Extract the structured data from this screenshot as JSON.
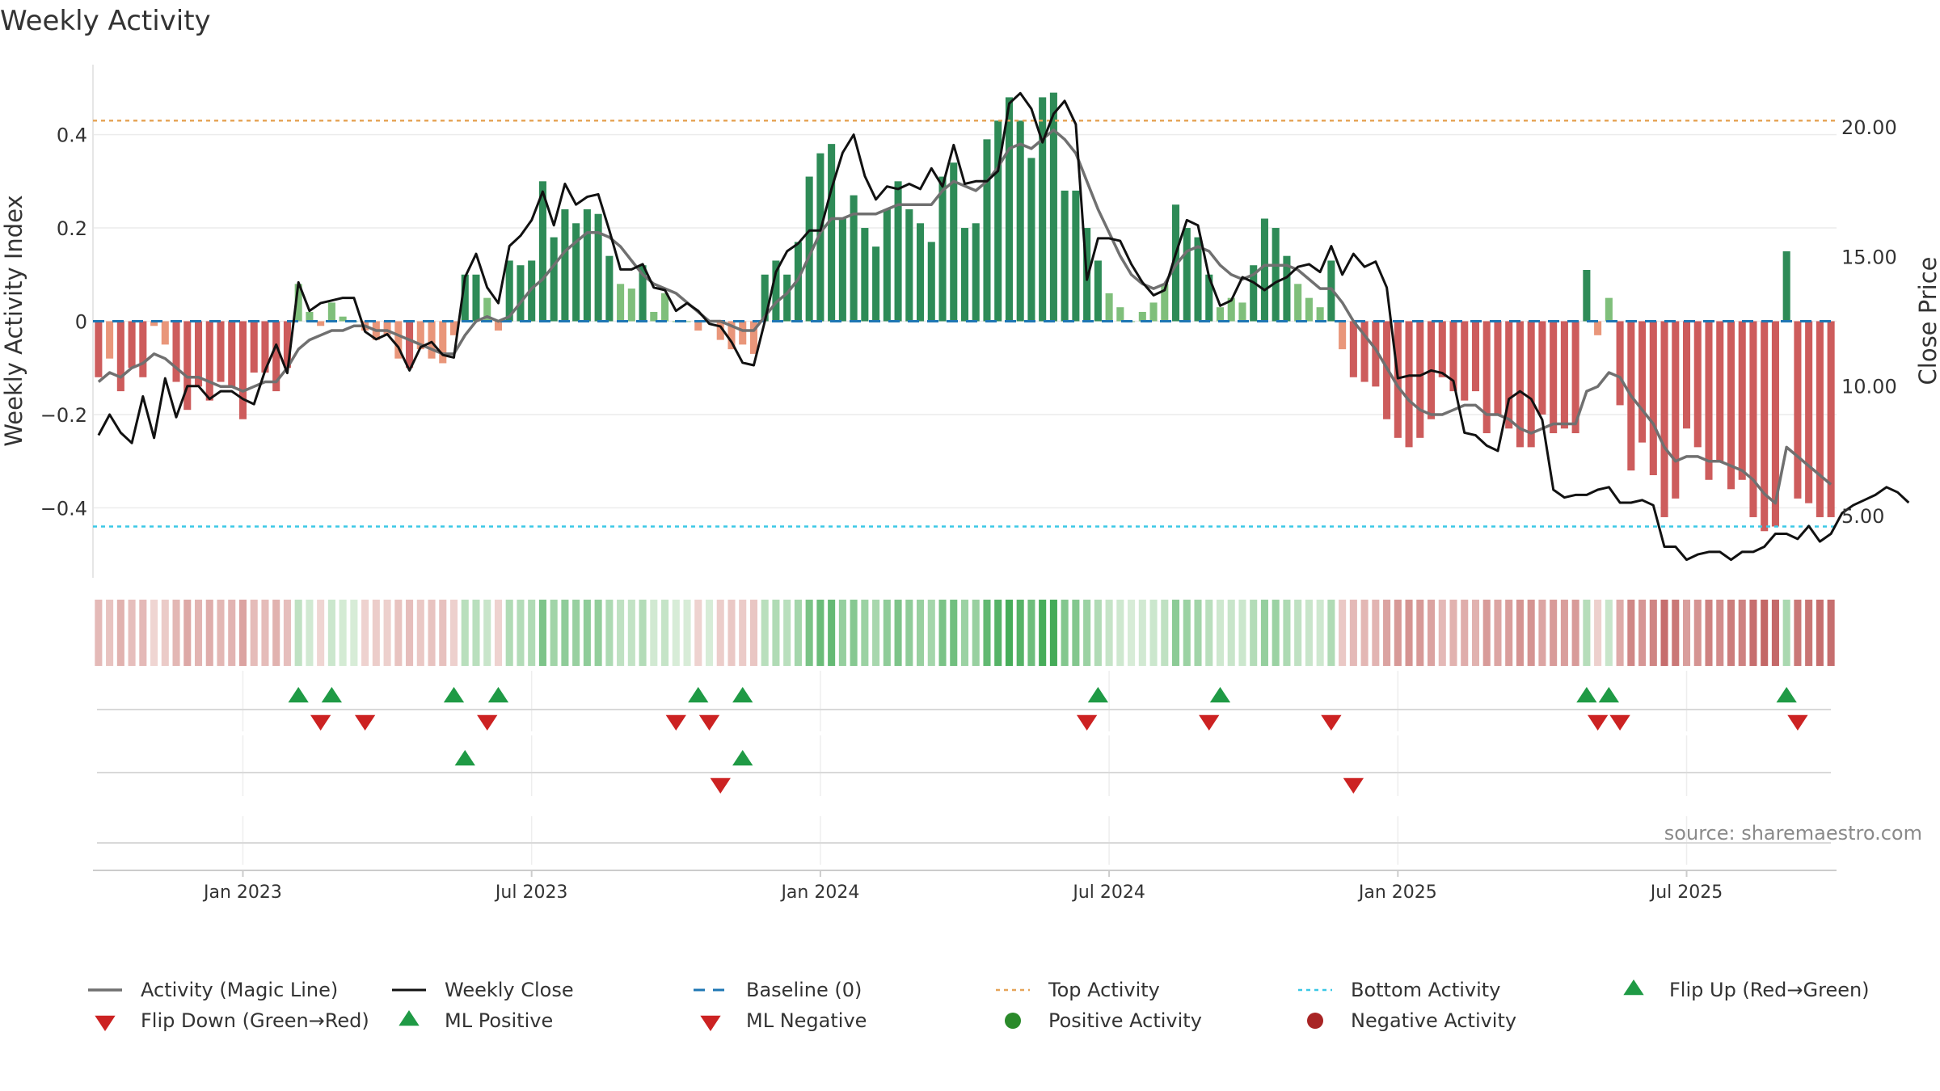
{
  "chart_data": {
    "type": "bar",
    "title": "Weekly Activity",
    "ylabel": "Weekly Activity Index",
    "y2label": "Close Price",
    "ylim": [
      -0.55,
      0.55
    ],
    "y2lim": [
      2.6,
      22.4
    ],
    "yticks": [
      -0.4,
      -0.2,
      0,
      0.2,
      0.4
    ],
    "ytick_labels": [
      "−0.4",
      "−0.2",
      "0",
      "0.2",
      "0.4"
    ],
    "y2ticks": [
      5,
      10,
      15,
      20
    ],
    "y2tick_labels": [
      "5.00",
      "10.00",
      "15.00",
      "20.00"
    ],
    "xticks": [
      {
        "label": "Jan 2023",
        "week": 13
      },
      {
        "label": "Jul 2023",
        "week": 39
      },
      {
        "label": "Jan 2024",
        "week": 65
      },
      {
        "label": "Jul 2024",
        "week": 91
      },
      {
        "label": "Jan 2025",
        "week": 117
      },
      {
        "label": "Jul 2025",
        "week": 143
      }
    ],
    "top_activity": 0.43,
    "bottom_activity": -0.44,
    "activity": [
      -0.12,
      -0.08,
      -0.15,
      -0.1,
      -0.12,
      -0.01,
      -0.05,
      -0.13,
      -0.19,
      -0.14,
      -0.17,
      -0.13,
      -0.14,
      -0.21,
      -0.11,
      -0.11,
      -0.15,
      -0.1,
      0.08,
      0.02,
      -0.01,
      0.04,
      0.01,
      0,
      -0.02,
      -0.04,
      -0.03,
      -0.08,
      -0.1,
      -0.06,
      -0.08,
      -0.09,
      -0.03,
      0.1,
      0.1,
      0.05,
      -0.02,
      0.13,
      0.12,
      0.13,
      0.3,
      0.18,
      0.24,
      0.21,
      0.24,
      0.23,
      0.14,
      0.08,
      0.07,
      0.12,
      0.02,
      0.06,
      0,
      0,
      -0.02,
      0,
      -0.04,
      -0.06,
      -0.05,
      -0.07,
      0.1,
      0.13,
      0.1,
      0.17,
      0.31,
      0.36,
      0.38,
      0.22,
      0.27,
      0.2,
      0.16,
      0.24,
      0.3,
      0.24,
      0.21,
      0.17,
      0.31,
      0.34,
      0.2,
      0.21,
      0.39,
      0.43,
      0.48,
      0.43,
      0.35,
      0.48,
      0.49,
      0.28,
      0.28,
      0.2,
      0.13,
      0.06,
      0.03,
      0,
      0.02,
      0.04,
      0.08,
      0.25,
      0.2,
      0.18,
      0.1,
      0.03,
      0.05,
      0.04,
      0.12,
      0.22,
      0.2,
      0.14,
      0.08,
      0.05,
      0.03,
      0.13,
      -0.06,
      -0.12,
      -0.13,
      -0.14,
      -0.21,
      -0.25,
      -0.27,
      -0.25,
      -0.21,
      -0.12,
      -0.15,
      -0.17,
      -0.15,
      -0.24,
      -0.2,
      -0.23,
      -0.27,
      -0.27,
      -0.2,
      -0.24,
      -0.23,
      -0.24,
      0.11,
      -0.03,
      0.05,
      -0.18,
      -0.32,
      -0.26,
      -0.33,
      -0.42,
      -0.38,
      -0.23,
      -0.27,
      -0.34,
      -0.3,
      -0.36,
      -0.34,
      -0.42,
      -0.45,
      -0.44,
      0.15,
      -0.38,
      -0.39,
      -0.42,
      -0.42
    ],
    "magic_line": [
      -0.13,
      -0.11,
      -0.12,
      -0.1,
      -0.09,
      -0.07,
      -0.08,
      -0.1,
      -0.12,
      -0.12,
      -0.13,
      -0.14,
      -0.14,
      -0.15,
      -0.14,
      -0.13,
      -0.13,
      -0.1,
      -0.06,
      -0.04,
      -0.03,
      -0.02,
      -0.02,
      -0.01,
      -0.01,
      -0.02,
      -0.02,
      -0.03,
      -0.04,
      -0.05,
      -0.06,
      -0.07,
      -0.07,
      -0.03,
      0,
      0.01,
      0,
      0.01,
      0.04,
      0.07,
      0.09,
      0.12,
      0.15,
      0.17,
      0.19,
      0.19,
      0.18,
      0.16,
      0.13,
      0.1,
      0.08,
      0.07,
      0.06,
      0.04,
      0.02,
      0,
      0,
      -0.01,
      -0.02,
      -0.02,
      0.01,
      0.04,
      0.06,
      0.09,
      0.14,
      0.19,
      0.22,
      0.22,
      0.23,
      0.23,
      0.23,
      0.24,
      0.25,
      0.25,
      0.25,
      0.25,
      0.28,
      0.3,
      0.29,
      0.28,
      0.3,
      0.33,
      0.37,
      0.38,
      0.37,
      0.39,
      0.41,
      0.39,
      0.36,
      0.3,
      0.24,
      0.19,
      0.14,
      0.1,
      0.08,
      0.07,
      0.08,
      0.12,
      0.15,
      0.16,
      0.15,
      0.12,
      0.1,
      0.09,
      0.1,
      0.12,
      0.12,
      0.12,
      0.11,
      0.09,
      0.07,
      0.07,
      0.04,
      0,
      -0.03,
      -0.06,
      -0.1,
      -0.14,
      -0.17,
      -0.19,
      -0.2,
      -0.2,
      -0.19,
      -0.18,
      -0.18,
      -0.2,
      -0.2,
      -0.21,
      -0.23,
      -0.24,
      -0.23,
      -0.22,
      -0.22,
      -0.22,
      -0.15,
      -0.14,
      -0.11,
      -0.12,
      -0.16,
      -0.19,
      -0.22,
      -0.27,
      -0.3,
      -0.29,
      -0.29,
      -0.3,
      -0.3,
      -0.31,
      -0.32,
      -0.34,
      -0.37,
      -0.39,
      -0.27,
      -0.29,
      -0.31,
      -0.33,
      -0.35
    ],
    "weekly_close": [
      8.1,
      8.9,
      8.2,
      7.8,
      9.6,
      8.0,
      10.3,
      8.8,
      10.0,
      10.0,
      9.5,
      9.8,
      9.8,
      9.5,
      9.3,
      10.6,
      11.6,
      10.5,
      14.0,
      12.9,
      13.2,
      13.3,
      13.4,
      13.4,
      12.1,
      11.8,
      12.0,
      11.5,
      10.6,
      11.5,
      11.7,
      11.2,
      11.1,
      14.2,
      15.1,
      13.8,
      13.2,
      15.4,
      15.8,
      16.4,
      17.5,
      16.2,
      17.8,
      17.0,
      17.3,
      17.4,
      16.0,
      14.5,
      14.5,
      14.7,
      13.8,
      13.7,
      12.9,
      13.2,
      12.9,
      12.4,
      12.3,
      11.7,
      10.9,
      10.8,
      12.5,
      14.4,
      15.2,
      15.5,
      16.0,
      16.0,
      17.6,
      19.0,
      19.7,
      18.1,
      17.2,
      17.7,
      17.6,
      17.8,
      17.6,
      18.4,
      17.7,
      19.3,
      17.8,
      17.9,
      17.9,
      18.3,
      20.9,
      21.3,
      20.7,
      19.4,
      20.5,
      21.0,
      20.1,
      14.1,
      15.7,
      15.7,
      15.6,
      14.7,
      14.0,
      13.5,
      13.7,
      15.1,
      16.4,
      16.2,
      14.2,
      13.1,
      13.3,
      14.2,
      14.0,
      13.7,
      14.0,
      14.2,
      14.6,
      14.7,
      14.4,
      15.4,
      14.3,
      15.1,
      14.6,
      14.8,
      13.8,
      10.3,
      10.4,
      10.4,
      10.6,
      10.5,
      10.2,
      8.2,
      8.1,
      7.7,
      7.5,
      9.5,
      9.8,
      9.5,
      8.7,
      6.0,
      5.7,
      5.8,
      5.8,
      6.0,
      6.1,
      5.5,
      5.5,
      5.6,
      5.4,
      3.8,
      3.8,
      3.3,
      3.5,
      3.6,
      3.6,
      3.3,
      3.6,
      3.6,
      3.8,
      4.3,
      4.3,
      4.1,
      4.6,
      4.0,
      4.3,
      5.1,
      5.4,
      5.6,
      5.8,
      6.1,
      5.9,
      5.5
    ]
  },
  "source_text": "source: sharemaestro.com",
  "flip_up_weeks": [
    18,
    21,
    32,
    36,
    54,
    58,
    90,
    101,
    134,
    136,
    152
  ],
  "flip_down_weeks": [
    20,
    24,
    35,
    52,
    55,
    89,
    100,
    111,
    135,
    137,
    153
  ],
  "ml_positive_weeks": [
    33,
    58
  ],
  "ml_negative_weeks": [
    56,
    113
  ],
  "colors": {
    "dark_green": "#2e8b57",
    "light_green": "#7fbf7b",
    "dark_red": "#cd5c5c",
    "light_red": "#e9967a",
    "magic_line": "#707070",
    "weekly_close": "#111111",
    "baseline": "#1f77b4",
    "top_activity": "#e6a55a",
    "bottom_activity": "#3bc8e6",
    "marker_green": "#1f9a45",
    "marker_red": "#cc2222",
    "positive_activity": "#2a8a2a",
    "negative_activity": "#a82424"
  },
  "legend": [
    {
      "label": "Activity (Magic Line)",
      "kind": "line-gray"
    },
    {
      "label": "Weekly Close",
      "kind": "line-black"
    },
    {
      "label": "Baseline (0)",
      "kind": "dash-blue"
    },
    {
      "label": "Top Activity",
      "kind": "dot-orange"
    },
    {
      "label": "Bottom Activity",
      "kind": "dot-cyan"
    },
    {
      "label": "Flip Up (Red→Green)",
      "kind": "tri-up"
    },
    {
      "label": "Flip Down (Green→Red)",
      "kind": "tri-down"
    },
    {
      "label": "ML Positive",
      "kind": "tri-up"
    },
    {
      "label": "ML Negative",
      "kind": "tri-down"
    },
    {
      "label": "Positive Activity",
      "kind": "circle-green"
    },
    {
      "label": "Negative Activity",
      "kind": "circle-red"
    }
  ]
}
